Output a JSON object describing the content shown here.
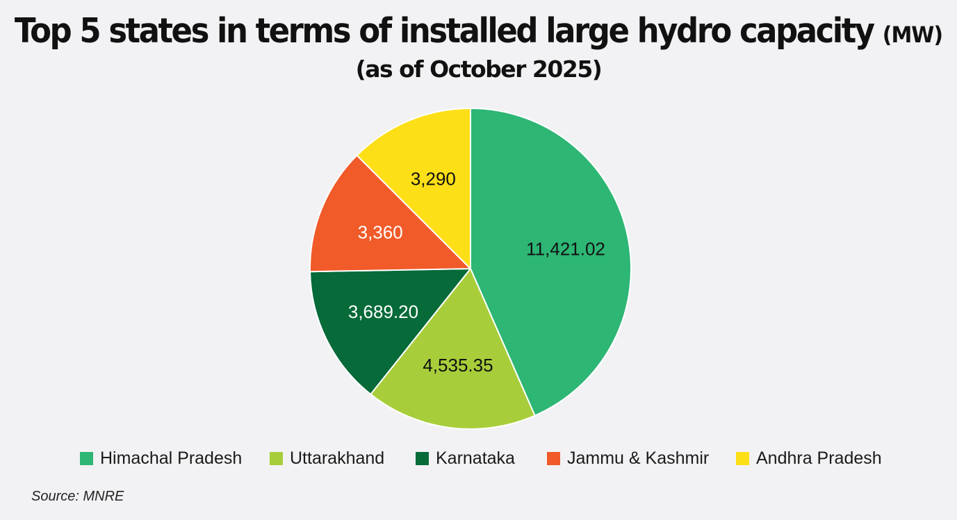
{
  "header": {
    "title": "Top 5 states in terms of installed large hydro capacity",
    "title_unit": "(MW)",
    "subtitle": "(as of October 2025)"
  },
  "chart_data": {
    "type": "pie",
    "title": "Top 5 states in terms of installed large hydro capacity (MW)",
    "subtitle": "(as of October 2025)",
    "unit": "MW",
    "start_angle_deg": 0,
    "direction": "clockwise",
    "legend_position": "bottom",
    "slices": [
      {
        "name": "Himachal Pradesh",
        "value": 11421.02,
        "label": "11,421.02",
        "color": "#2db674",
        "label_color": "#111111"
      },
      {
        "name": "Uttarakhand",
        "value": 4535.35,
        "label": "4,535.35",
        "color": "#a7ce3a",
        "label_color": "#111111"
      },
      {
        "name": "Karnataka",
        "value": 3689.2,
        "label": "3,689.20",
        "color": "#066a39",
        "label_color": "#ffffff"
      },
      {
        "name": "Jammu & Kashmir",
        "value": 3360,
        "label": "3,360",
        "color": "#f15a29",
        "label_color": "#ffffff"
      },
      {
        "name": "Andhra Pradesh",
        "value": 3290,
        "label": "3,290",
        "color": "#fddf18",
        "label_color": "#111111"
      }
    ]
  },
  "legend": {
    "items": [
      {
        "label": "Himachal Pradesh",
        "color": "#2db674"
      },
      {
        "label": "Uttarakhand",
        "color": "#a7ce3a"
      },
      {
        "label": "Karnataka",
        "color": "#066a39"
      },
      {
        "label": "Jammu & Kashmir",
        "color": "#f15a29"
      },
      {
        "label": "Andhra Pradesh",
        "color": "#fddf18"
      }
    ]
  },
  "footer": {
    "source": "Source: MNRE"
  }
}
